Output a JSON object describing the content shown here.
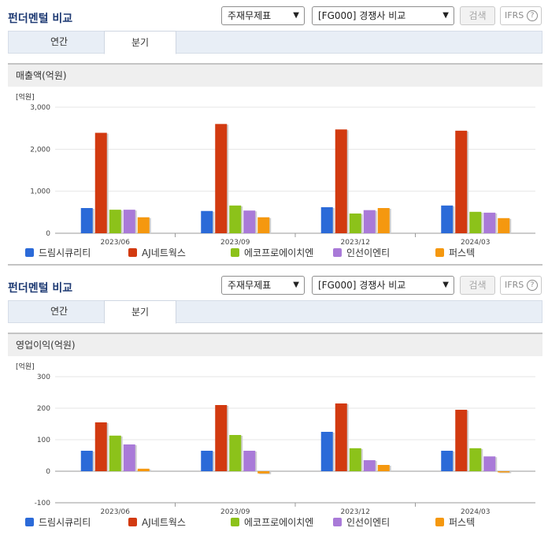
{
  "sections": [
    {
      "title": "펀더멘털 비교",
      "select_a": "주재무제표",
      "select_b": "[FG000] 경쟁사 비교",
      "search_label": "검색",
      "ifrs_label": "IFRS",
      "help_glyph": "?",
      "tabs": [
        {
          "label": "연간"
        },
        {
          "label": "분기"
        }
      ],
      "active_tab": 1,
      "subtitle": "매출액(억원)"
    },
    {
      "title": "펀더멘털 비교",
      "select_a": "주재무제표",
      "select_b": "[FG000] 경쟁사 비교",
      "search_label": "검색",
      "ifrs_label": "IFRS",
      "help_glyph": "?",
      "tabs": [
        {
          "label": "연간"
        },
        {
          "label": "분기"
        }
      ],
      "active_tab": 1,
      "subtitle": "영업이익(억원)"
    }
  ],
  "chart_data": [
    {
      "type": "bar",
      "unit_label": "[억원]",
      "categories": [
        "2023/06",
        "2023/09",
        "2023/12",
        "2024/03"
      ],
      "ylim": [
        0,
        3000
      ],
      "yticks": [
        "3,000",
        "2,000",
        "1,000",
        "0"
      ],
      "ytick_values": [
        3000,
        2000,
        1000,
        0
      ],
      "series": [
        {
          "name": "드림시큐리티",
          "color": "#2b6ad8",
          "values": [
            600,
            530,
            620,
            660
          ]
        },
        {
          "name": "AJ네트웍스",
          "color": "#d23a10",
          "values": [
            2390,
            2600,
            2470,
            2440
          ]
        },
        {
          "name": "에코프로에이치엔",
          "color": "#8cc21a",
          "values": [
            560,
            660,
            470,
            510
          ]
        },
        {
          "name": "인선이엔티",
          "color": "#a97ad8",
          "values": [
            560,
            540,
            550,
            490
          ]
        },
        {
          "name": "퍼스텍",
          "color": "#f5980f",
          "values": [
            380,
            380,
            600,
            360
          ]
        }
      ]
    },
    {
      "type": "bar",
      "unit_label": "[억원]",
      "categories": [
        "2023/06",
        "2023/09",
        "2023/12",
        "2024/03"
      ],
      "ylim": [
        -100,
        300
      ],
      "yticks": [
        "300",
        "200",
        "100",
        "0",
        "-100"
      ],
      "ytick_values": [
        300,
        200,
        100,
        0,
        -100
      ],
      "series": [
        {
          "name": "드림시큐리티",
          "color": "#2b6ad8",
          "values": [
            65,
            65,
            125,
            65
          ]
        },
        {
          "name": "AJ네트웍스",
          "color": "#d23a10",
          "values": [
            155,
            210,
            215,
            195
          ]
        },
        {
          "name": "에코프로에이치엔",
          "color": "#8cc21a",
          "values": [
            113,
            115,
            73,
            73
          ]
        },
        {
          "name": "인선이엔티",
          "color": "#a97ad8",
          "values": [
            85,
            65,
            35,
            47
          ]
        },
        {
          "name": "퍼스텍",
          "color": "#f5980f",
          "values": [
            8,
            -7,
            20,
            0
          ]
        }
      ]
    }
  ]
}
